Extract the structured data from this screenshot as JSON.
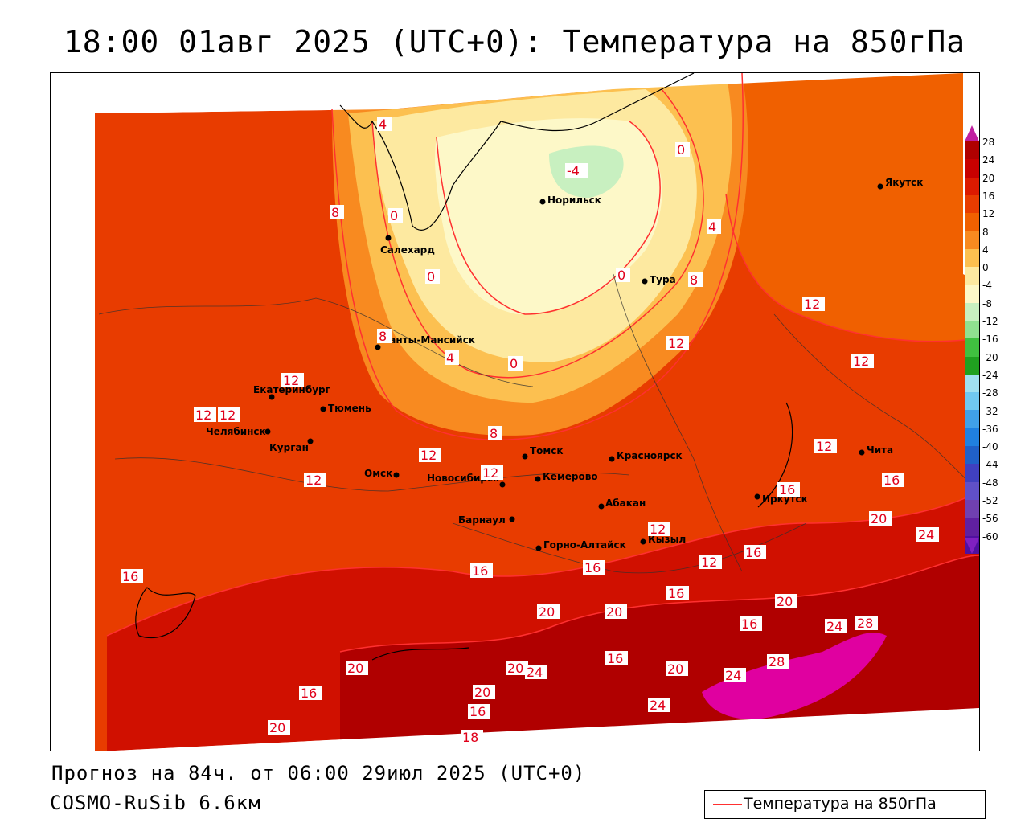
{
  "title": "18:00 01авг 2025 (UTC+0): Температура на 850гПа",
  "footer": {
    "forecast": "Прогноз на 84ч. от 06:00 29июл 2025 (UTC+0)",
    "model": "COSMO-RuSib 6.6км"
  },
  "legend": {
    "label": "Температура на 850гПа",
    "line_color": "#ff3030"
  },
  "colorbar": {
    "labels": [
      "28",
      "24",
      "20",
      "16",
      "12",
      "8",
      "4",
      "0",
      "-4",
      "-8",
      "-12",
      "-16",
      "-20",
      "-24",
      "-28",
      "-32",
      "-36",
      "-40",
      "-44",
      "-48",
      "-52",
      "-56",
      "-60"
    ],
    "colors": [
      "#b00000",
      "#c80000",
      "#dc1a00",
      "#e83c00",
      "#f06000",
      "#f88a20",
      "#fcc050",
      "#fde9a0",
      "#fdf8c8",
      "#c8f0c0",
      "#90e090",
      "#40c040",
      "#20a020",
      "#a0e0f0",
      "#70c8f0",
      "#40a0e8",
      "#2080e0",
      "#2060c8",
      "#4040c0",
      "#6050c8",
      "#7040b0",
      "#6020a0",
      "#5010a0"
    ]
  },
  "cities": [
    {
      "name": "Якутск"
    },
    {
      "name": "Норильск"
    },
    {
      "name": "Салехард"
    },
    {
      "name": "Тура"
    },
    {
      "name": "Ханты-Мансийск"
    },
    {
      "name": "Екатеринбург"
    },
    {
      "name": "Тюмень"
    },
    {
      "name": "Челябинск"
    },
    {
      "name": "Курган"
    },
    {
      "name": "Омск"
    },
    {
      "name": "Новосибирск"
    },
    {
      "name": "Томск"
    },
    {
      "name": "Кемерово"
    },
    {
      "name": "Красноярск"
    },
    {
      "name": "Абакан"
    },
    {
      "name": "Барнаул"
    },
    {
      "name": "Горно-Алтайск"
    },
    {
      "name": "Кызыл"
    },
    {
      "name": "Иркутск"
    },
    {
      "name": "Чита"
    }
  ],
  "contour_labels": [
    "4",
    "8",
    "0",
    "-4",
    "0",
    "4",
    "0",
    "0",
    "8",
    "12",
    "8",
    "4",
    "0",
    "12",
    "12",
    "12",
    "12",
    "12",
    "8",
    "12",
    "12",
    "12",
    "16",
    "12",
    "16",
    "16",
    "16",
    "20",
    "12",
    "16",
    "16",
    "16",
    "12",
    "20",
    "20",
    "16",
    "20",
    "24",
    "28",
    "16",
    "20",
    "24",
    "24",
    "28",
    "20",
    "16",
    "20",
    "24",
    "16",
    "24",
    "20",
    "20",
    "18"
  ]
}
